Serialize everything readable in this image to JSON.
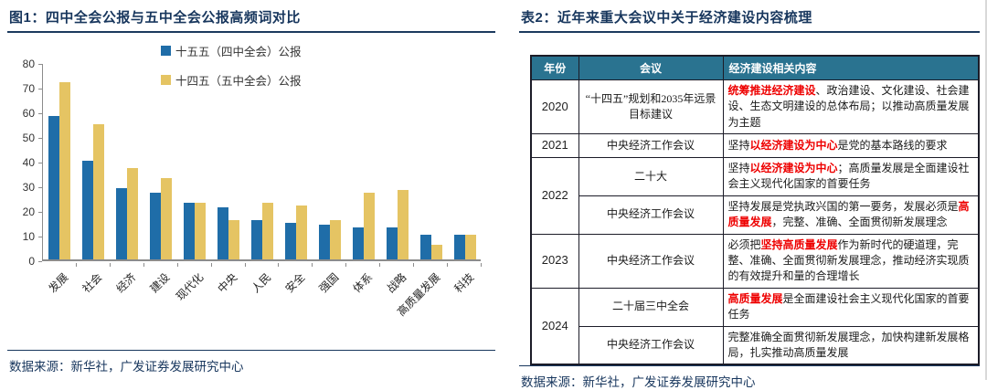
{
  "colors": {
    "navy": "#17365D",
    "table_header_bg": "#2A7390",
    "highlight_red": "#EE0000",
    "axis_gray": "#8c8c8c",
    "bar_blue": "#1F6DA8",
    "bar_yellow": "#E5C463"
  },
  "left_panel": {
    "title": "图1：四中全会公报与五中全会公报高频词对比",
    "source": "数据来源：新华社，广发证券发展研究中心",
    "chart_data": {
      "type": "bar",
      "title": "",
      "xlabel": "",
      "ylabel": "",
      "ylim": [
        0,
        80
      ],
      "ytick_step": 10,
      "grid": false,
      "legend_position": "top-center",
      "categories": [
        "发展",
        "社会",
        "经济",
        "建设",
        "现代化",
        "中央",
        "人民",
        "安全",
        "强国",
        "体系",
        "战略",
        "高质量发展",
        "科技"
      ],
      "series": [
        {
          "name": "十五五（四中全会）公报",
          "color": "#1F6DA8",
          "values": [
            58,
            40,
            29,
            27,
            23,
            21,
            16,
            15,
            14,
            13,
            13,
            10,
            10
          ]
        },
        {
          "name": "十四五（五中全会）公报",
          "color": "#E5C463",
          "values": [
            72,
            55,
            37,
            33,
            23,
            16,
            23,
            22,
            16,
            27,
            28,
            6,
            10
          ]
        }
      ]
    }
  },
  "right_panel": {
    "title": "表2：近年来重大会议中关于经济建设内容梳理",
    "source": "数据来源：新华社，广发证券发展研究中心",
    "table": {
      "headers": [
        "年份",
        "会议",
        "经济建设相关内容"
      ],
      "rows": [
        {
          "year": "2020",
          "rowspan": 1,
          "meeting": "“十四五”规划和2035年远景目标建议",
          "content": [
            {
              "text": "统筹推进经济建设",
              "red": true
            },
            {
              "text": "、政治建设、文化建设、社会建设、生态文明建设的总体布局；以推动高质量发展为主题",
              "red": false
            }
          ]
        },
        {
          "year": "2021",
          "rowspan": 1,
          "meeting": "中央经济工作会议",
          "content": [
            {
              "text": "坚持",
              "red": false
            },
            {
              "text": "以经济建设为中心",
              "red": true
            },
            {
              "text": "是党的基本路线的要求",
              "red": false
            }
          ]
        },
        {
          "year": "2022",
          "rowspan": 2,
          "meeting": "二十大",
          "content": [
            {
              "text": "坚持",
              "red": false
            },
            {
              "text": "以经济建设为中心",
              "red": true
            },
            {
              "text": "；高质量发展是全面建设社会主义现代化国家的首要任务",
              "red": false
            }
          ]
        },
        {
          "year": null,
          "meeting": "中央经济工作会议",
          "content": [
            {
              "text": "坚持发展是党执政兴国的第一要务，发展必须是",
              "red": false
            },
            {
              "text": "高质量发展",
              "red": true
            },
            {
              "text": "，完整、准确、全面贯彻新发展理念",
              "red": false
            }
          ]
        },
        {
          "year": "2023",
          "rowspan": 1,
          "meeting": "中央经济工作会议",
          "content": [
            {
              "text": "必须把",
              "red": false
            },
            {
              "text": "坚持高质量发展",
              "red": true
            },
            {
              "text": "作为新时代的硬道理，完整、准确、全面贯彻新发展理念，推动经济实现质的有效提升和量的合理增长",
              "red": false
            }
          ]
        },
        {
          "year": "2024",
          "rowspan": 2,
          "meeting": "二十届三中全会",
          "content": [
            {
              "text": "高质量发展",
              "red": true
            },
            {
              "text": "是全面建设社会主义现代化国家的首要任务",
              "red": false
            }
          ]
        },
        {
          "year": null,
          "meeting": "中央经济工作会议",
          "content": [
            {
              "text": "完整准确全面贯彻新发展理念，加快构建新发展格局，扎实推动高质量发展",
              "red": false
            }
          ]
        }
      ]
    }
  }
}
